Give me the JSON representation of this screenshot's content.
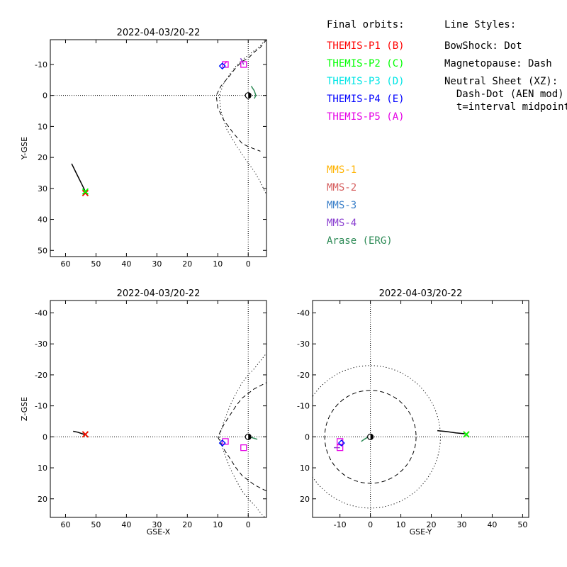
{
  "legend": {
    "orbits_title": "Final orbits:",
    "orbit_items": [
      {
        "label": "THEMIS-P1 (B)",
        "color": "#ff0000"
      },
      {
        "label": "THEMIS-P2 (C)",
        "color": "#00ff00"
      },
      {
        "label": "THEMIS-P3 (D)",
        "color": "#00e5e5"
      },
      {
        "label": "THEMIS-P4 (E)",
        "color": "#0000ff"
      },
      {
        "label": "THEMIS-P5 (A)",
        "color": "#e500e5"
      }
    ],
    "mms_items": [
      {
        "label": "MMS-1",
        "color": "#ffb300"
      },
      {
        "label": "MMS-2",
        "color": "#d66060"
      },
      {
        "label": "MMS-3",
        "color": "#3a7fc9"
      },
      {
        "label": "MMS-4",
        "color": "#8a3fd0"
      },
      {
        "label": "Arase (ERG)",
        "color": "#2e8b57"
      }
    ],
    "styles_title": "Line Styles:",
    "style_items": [
      "BowShock: Dot",
      "Magnetopause: Dash",
      "Neutral Sheet (XZ):",
      "  Dash-Dot (AEN mod)",
      "  t=interval midpoint"
    ]
  },
  "chart_data": [
    {
      "id": "xy",
      "type": "scatter",
      "title": "2022-04-03/20-22",
      "xlabel": "",
      "ylabel": "Y-GSE",
      "xlim": [
        65,
        -6
      ],
      "ylim": [
        -18,
        52
      ],
      "xticks": [
        60,
        50,
        40,
        30,
        20,
        10,
        0
      ],
      "yticks": [
        -10,
        0,
        10,
        20,
        30,
        40,
        50
      ],
      "grid": false,
      "zero_lines": true,
      "boundaries": [
        {
          "name": "BowShock",
          "style": "dot",
          "points": [
            [
              -6,
              -18.5
            ],
            [
              -4,
              -16
            ],
            [
              -2,
              -14.5
            ],
            [
              0,
              -13
            ],
            [
              2,
              -11.5
            ],
            [
              4,
              -9.5
            ],
            [
              6,
              -7
            ],
            [
              8,
              -4
            ],
            [
              9.5,
              0
            ],
            [
              9,
              5
            ],
            [
              7,
              11
            ],
            [
              4,
              16
            ],
            [
              1,
              20.5
            ],
            [
              -2,
              24.5
            ],
            [
              -4,
              28
            ],
            [
              -6,
              32
            ]
          ]
        },
        {
          "name": "Magnetopause",
          "style": "dash",
          "points": [
            [
              -6,
              -18
            ],
            [
              -4,
              -15.5
            ],
            [
              -2,
              -14
            ],
            [
              0,
              -12
            ],
            [
              2,
              -11
            ],
            [
              4,
              -9
            ],
            [
              6,
              -6.5
            ],
            [
              9,
              -3
            ],
            [
              10.5,
              0
            ],
            [
              10,
              4
            ],
            [
              8,
              8
            ],
            [
              5,
              12
            ],
            [
              2,
              15.5
            ],
            [
              0,
              16.5
            ],
            [
              -4,
              18
            ]
          ]
        }
      ],
      "tracks": [
        {
          "color": "#000000",
          "points": [
            [
              58,
              22
            ],
            [
              56.5,
              25
            ],
            [
              55,
              28
            ],
            [
              54,
              30
            ],
            [
              53,
              32
            ]
          ]
        },
        {
          "color": "#2e8b57",
          "points": [
            [
              -1,
              -3
            ],
            [
              -2,
              -1.5
            ],
            [
              -2.5,
              0
            ],
            [
              -2,
              1
            ]
          ]
        },
        {
          "color": "#8a3fd0",
          "points": [
            [
              2.5,
              -12
            ],
            [
              1.5,
              -10
            ]
          ]
        },
        {
          "color": "#e500e5",
          "points": [
            [
              7,
              -11
            ],
            [
              8,
              -10
            ]
          ]
        }
      ],
      "markers": [
        {
          "shape": "x",
          "color": "#ff0000",
          "x": 53.5,
          "y": 31.5
        },
        {
          "shape": "x",
          "color": "#00ff00",
          "x": 53.5,
          "y": 31
        },
        {
          "shape": "square",
          "color": "#e500e5",
          "x": 1.5,
          "y": -10
        },
        {
          "shape": "square",
          "color": "#e500e5",
          "x": 7.5,
          "y": -10
        },
        {
          "shape": "diamond",
          "color": "#00e5e5",
          "x": 8.5,
          "y": -9.5
        },
        {
          "shape": "diamond",
          "color": "#0000ff",
          "x": 8.5,
          "y": -9.5
        },
        {
          "shape": "earth",
          "color": "#000000",
          "x": 0,
          "y": 0
        }
      ]
    },
    {
      "id": "xz",
      "type": "scatter",
      "title": "2022-04-03/20-22",
      "xlabel": "GSE-X",
      "ylabel": "Z-GSE",
      "xlim": [
        65,
        -6
      ],
      "ylim": [
        -44,
        26
      ],
      "xticks": [
        60,
        50,
        40,
        30,
        20,
        10,
        0
      ],
      "yticks": [
        -40,
        -30,
        -20,
        -10,
        0,
        10,
        20
      ],
      "grid": false,
      "zero_lines": true,
      "boundaries": [
        {
          "name": "BowShock",
          "style": "dot",
          "points": [
            [
              -6,
              26.5
            ],
            [
              -4,
              24.5
            ],
            [
              -2,
              22
            ],
            [
              0,
              20
            ],
            [
              2,
              17.5
            ],
            [
              4,
              14
            ],
            [
              6,
              10
            ],
            [
              8,
              5
            ],
            [
              9.5,
              0
            ],
            [
              8,
              -5
            ],
            [
              6,
              -10
            ],
            [
              4,
              -14
            ],
            [
              2,
              -17.5
            ],
            [
              0,
              -20
            ],
            [
              -2,
              -22
            ],
            [
              -4,
              -24.5
            ],
            [
              -6,
              -27
            ]
          ]
        },
        {
          "name": "Magnetopause",
          "style": "dash",
          "points": [
            [
              -6,
              17.5
            ],
            [
              -4,
              16.5
            ],
            [
              -2,
              15.5
            ],
            [
              0,
              14
            ],
            [
              2,
              12.5
            ],
            [
              4,
              10
            ],
            [
              6,
              7
            ],
            [
              8,
              4
            ],
            [
              10,
              0
            ],
            [
              8,
              -4
            ],
            [
              6,
              -7
            ],
            [
              4,
              -10
            ],
            [
              2,
              -12.5
            ],
            [
              0,
              -14
            ],
            [
              -2,
              -15.5
            ],
            [
              -4,
              -16.5
            ],
            [
              -6,
              -17.5
            ]
          ]
        }
      ],
      "tracks": [
        {
          "color": "#000000",
          "points": [
            [
              57.5,
              -1.8
            ],
            [
              56,
              -1.5
            ],
            [
              54.5,
              -1
            ],
            [
              53,
              -0.5
            ]
          ]
        },
        {
          "color": "#2e8b57",
          "points": [
            [
              -3,
              0.8
            ],
            [
              -2,
              0.5
            ],
            [
              -1,
              0.2
            ],
            [
              0,
              0
            ]
          ]
        }
      ],
      "markers": [
        {
          "shape": "x",
          "color": "#00ff00",
          "x": 53.5,
          "y": -0.8
        },
        {
          "shape": "x",
          "color": "#ff0000",
          "x": 53.5,
          "y": -0.8
        },
        {
          "shape": "square",
          "color": "#e500e5",
          "x": 1.5,
          "y": 3.5
        },
        {
          "shape": "square",
          "color": "#e500e5",
          "x": 7.5,
          "y": 1.5
        },
        {
          "shape": "diamond",
          "color": "#00e5e5",
          "x": 8.5,
          "y": 2
        },
        {
          "shape": "diamond",
          "color": "#0000ff",
          "x": 8.5,
          "y": 2
        },
        {
          "shape": "earth",
          "color": "#000000",
          "x": 0,
          "y": 0
        }
      ]
    },
    {
      "id": "yz",
      "type": "scatter",
      "title": "2022-04-03/20-22",
      "xlabel": "GSE-Y",
      "ylabel": "",
      "xlim": [
        -19,
        52
      ],
      "ylim": [
        -44,
        26
      ],
      "xticks": [
        -10,
        0,
        10,
        20,
        30,
        40,
        50
      ],
      "yticks": [
        -40,
        -30,
        -20,
        -10,
        0,
        10,
        20
      ],
      "grid": false,
      "zero_lines": true,
      "circles": [
        {
          "name": "BowShock",
          "style": "dot",
          "r": 23
        },
        {
          "name": "Magnetopause",
          "style": "dash",
          "r": 15
        }
      ],
      "tracks": [
        {
          "color": "#000000",
          "points": [
            [
              22,
              -2
            ],
            [
              25,
              -1.7
            ],
            [
              28,
              -1.3
            ],
            [
              31,
              -1
            ]
          ]
        },
        {
          "color": "#2e8b57",
          "points": [
            [
              -3,
              1.5
            ],
            [
              -2,
              0.8
            ],
            [
              -1,
              0.2
            ],
            [
              0,
              0
            ]
          ]
        },
        {
          "color": "#8a3fd0",
          "points": [
            [
              -12,
              3.5
            ],
            [
              -10,
              3.5
            ]
          ]
        }
      ],
      "markers": [
        {
          "shape": "x",
          "color": "#ff0000",
          "x": 31.5,
          "y": -0.8
        },
        {
          "shape": "x",
          "color": "#00ff00",
          "x": 31.5,
          "y": -0.8
        },
        {
          "shape": "square",
          "color": "#e500e5",
          "x": -10,
          "y": 3.5
        },
        {
          "shape": "square",
          "color": "#e500e5",
          "x": -10,
          "y": 1.5
        },
        {
          "shape": "diamond",
          "color": "#00e5e5",
          "x": -9.5,
          "y": 2
        },
        {
          "shape": "diamond",
          "color": "#0000ff",
          "x": -9.5,
          "y": 2
        },
        {
          "shape": "earth",
          "color": "#000000",
          "x": 0,
          "y": 0
        }
      ]
    }
  ]
}
